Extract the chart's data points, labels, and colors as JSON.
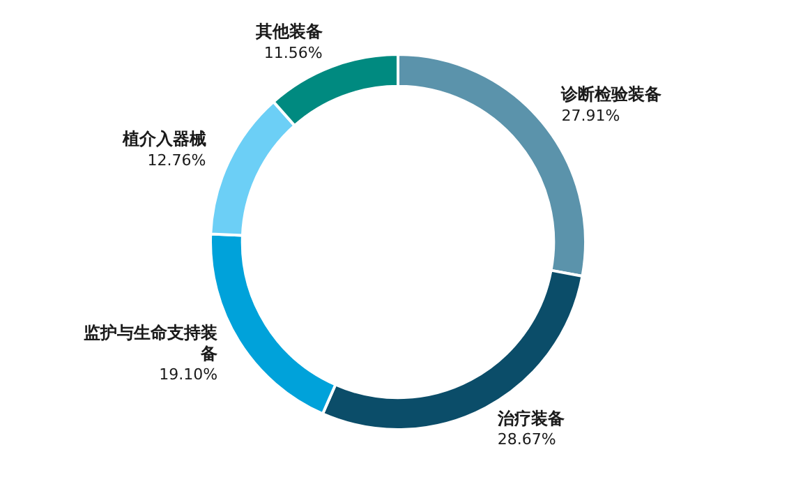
{
  "chart_data": {
    "type": "donut",
    "categories": [
      "诊断检验装备",
      "治疗装备",
      "监护与生命支持装备",
      "植介入器械",
      "其他装备"
    ],
    "values": [
      27.91,
      28.67,
      19.1,
      12.76,
      11.56
    ],
    "value_labels": [
      "27.91%",
      "28.67%",
      "19.10%",
      "12.76%",
      "11.56%"
    ],
    "colors": [
      "#5b93ab",
      "#0b4d69",
      "#00a2da",
      "#6ccff6",
      "#008a80"
    ],
    "legend": false
  }
}
